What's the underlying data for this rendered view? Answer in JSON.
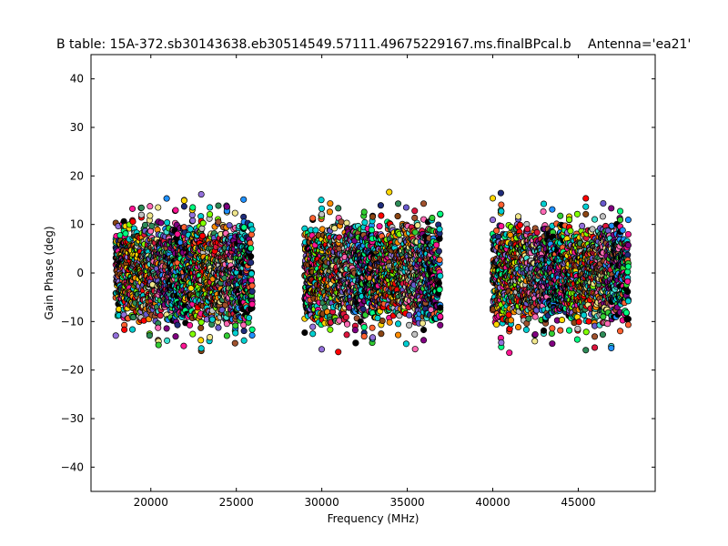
{
  "chart_data": {
    "type": "scatter",
    "title": "B table: 15A-372.sb30143638.eb30514549.57111.49675229167.ms.finalBPcal.b",
    "subtitle": "Antenna='ea21'",
    "xlabel": "Frequency (MHz)",
    "ylabel": "Gain Phase (deg)",
    "xlim": [
      16500,
      49500
    ],
    "ylim": [
      -45,
      45
    ],
    "x_ticks": [
      20000,
      25000,
      30000,
      35000,
      40000,
      45000
    ],
    "y_ticks": [
      -40,
      -30,
      -20,
      -10,
      0,
      10,
      20,
      30,
      40
    ],
    "grid": false,
    "marker": "circle",
    "marker_edge_color": "#000000",
    "bands": [
      {
        "x_start": 17950,
        "x_end": 25950,
        "spw_count": 16,
        "y_min": -18,
        "y_max": 20
      },
      {
        "x_start": 29000,
        "x_end": 36950,
        "spw_count": 16,
        "y_min": -19,
        "y_max": 24
      },
      {
        "x_start": 40000,
        "x_end": 47950,
        "spw_count": 16,
        "y_min": -19,
        "y_max": 19
      }
    ],
    "series_colors": [
      "#000000",
      "#1f2b7a",
      "#00d0d0",
      "#ff6030",
      "#ff1493",
      "#00ff7f",
      "#9370db",
      "#ffd700",
      "#8b4513",
      "#ff0000",
      "#00ced1",
      "#7fff00",
      "#c0c0c0",
      "#2e8b57",
      "#ff8c00",
      "#6a5acd",
      "#f0e68c",
      "#dc143c",
      "#40e0d0",
      "#a0522d",
      "#ff69b4",
      "#1e90ff",
      "#32cd32",
      "#800080"
    ]
  }
}
